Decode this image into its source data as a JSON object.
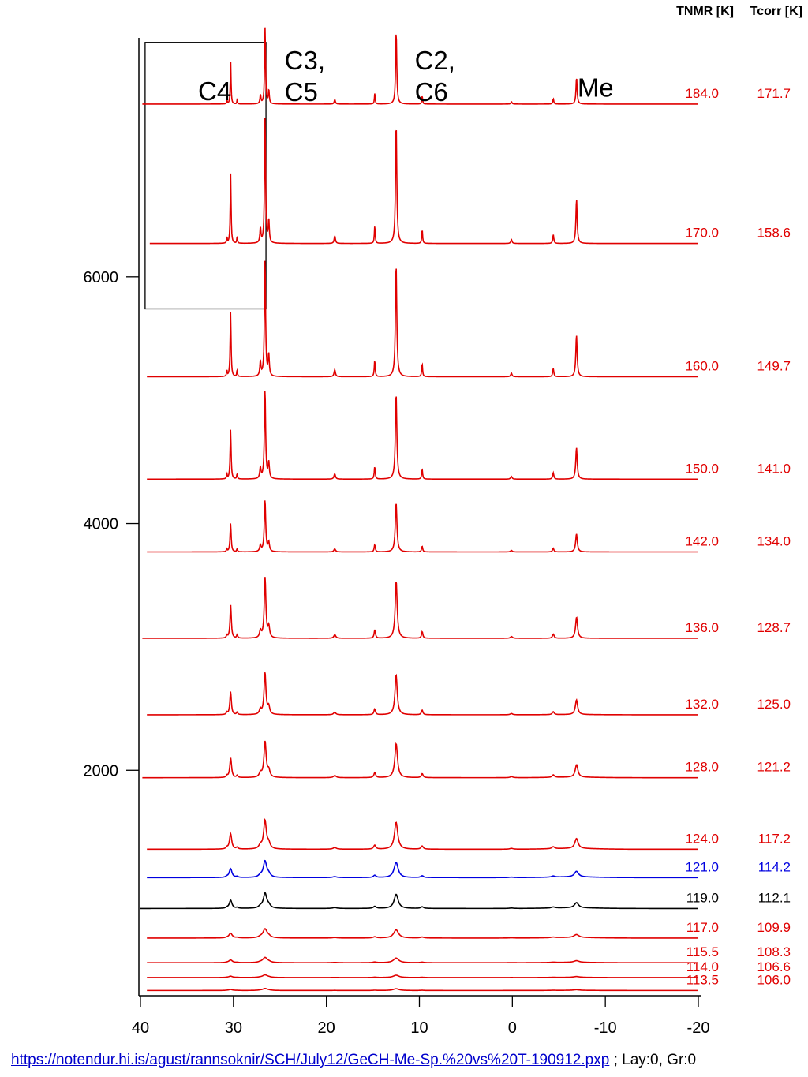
{
  "chart_data": {
    "type": "line",
    "title": "",
    "xlabel": "",
    "ylabel": "",
    "xlim": [
      40,
      -20
    ],
    "ylim": [
      0,
      7700
    ],
    "x_ticks": [
      40,
      30,
      20,
      10,
      0,
      -10,
      -20
    ],
    "x_tick_labels": [
      "40",
      "30",
      "20",
      "10",
      "0",
      "-10",
      "-20"
    ],
    "y_ticks": [
      2000,
      4000,
      6000
    ],
    "y_tick_labels": [
      "2000",
      "4000",
      "6000"
    ],
    "grid": false,
    "column_headers": [
      "TNMR [K]",
      "Tcorr [K]"
    ],
    "peak_labels": [
      {
        "text": [
          "C4"
        ],
        "x": 33.8,
        "y": 7430
      },
      {
        "text": [
          "C3,",
          "C5"
        ],
        "x": 24.5,
        "y": 7680
      },
      {
        "text": [
          "C2,",
          "C6"
        ],
        "x": 10.5,
        "y": 7680
      },
      {
        "text": [
          "Me"
        ],
        "x": -7.0,
        "y": 7460
      }
    ],
    "inset_box": {
      "x": [
        39.5,
        26.5
      ],
      "y": [
        5740,
        7900
      ]
    },
    "peaks": [
      {
        "pos": 30.3,
        "rel": 0.55,
        "w": 0.4
      },
      {
        "pos": 29.6,
        "rel": 0.06,
        "w": 0.3
      },
      {
        "pos": 30.7,
        "rel": 0.05,
        "w": 0.3
      },
      {
        "pos": 27.1,
        "rel": 0.12,
        "w": 0.5
      },
      {
        "pos": 26.6,
        "rel": 1.0,
        "w": 0.5
      },
      {
        "pos": 26.2,
        "rel": 0.18,
        "w": 0.5
      },
      {
        "pos": 19.1,
        "rel": 0.06,
        "w": 0.6
      },
      {
        "pos": 14.8,
        "rel": 0.14,
        "w": 0.4
      },
      {
        "pos": 12.5,
        "rel": 0.95,
        "w": 0.6
      },
      {
        "pos": 9.7,
        "rel": 0.11,
        "w": 0.4
      },
      {
        "pos": 0.1,
        "rel": 0.03,
        "w": 0.6
      },
      {
        "pos": -4.4,
        "rel": 0.07,
        "w": 0.5
      },
      {
        "pos": -6.9,
        "rel": 0.35,
        "w": 0.6
      }
    ],
    "series": [
      {
        "tnmr": "184.0",
        "tcorr": "171.7",
        "baseline": 7400,
        "height": 620,
        "width_scale": 0.55,
        "x_start": 39.8,
        "color": "#e00000"
      },
      {
        "tnmr": "170.0",
        "tcorr": "158.6",
        "baseline": 6270,
        "height": 1030,
        "width_scale": 0.6,
        "x_start": 39.0,
        "color": "#e00000"
      },
      {
        "tnmr": "160.0",
        "tcorr": "149.7",
        "baseline": 5190,
        "height": 960,
        "width_scale": 0.65,
        "x_start": 39.3,
        "color": "#e00000"
      },
      {
        "tnmr": "150.0",
        "tcorr": "141.0",
        "baseline": 4360,
        "height": 730,
        "width_scale": 0.7,
        "x_start": 39.3,
        "color": "#e00000"
      },
      {
        "tnmr": "142.0",
        "tcorr": "134.0",
        "baseline": 3770,
        "height": 420,
        "width_scale": 0.8,
        "x_start": 39.3,
        "color": "#e00000"
      },
      {
        "tnmr": "136.0",
        "tcorr": "128.7",
        "baseline": 3070,
        "height": 490,
        "width_scale": 0.95,
        "x_start": 39.8,
        "color": "#e00000"
      },
      {
        "tnmr": "132.0",
        "tcorr": "125.0",
        "baseline": 2450,
        "height": 340,
        "width_scale": 1.1,
        "x_start": 39.3,
        "color": "#e00000"
      },
      {
        "tnmr": "128.0",
        "tcorr": "121.2",
        "baseline": 1940,
        "height": 290,
        "width_scale": 1.3,
        "x_start": 39.8,
        "color": "#e00000"
      },
      {
        "tnmr": "124.0",
        "tcorr": "117.2",
        "baseline": 1360,
        "height": 230,
        "width_scale": 1.6,
        "x_start": 39.3,
        "color": "#e00000"
      },
      {
        "tnmr": "121.0",
        "tcorr": "114.2",
        "baseline": 1130,
        "height": 130,
        "width_scale": 2.0,
        "x_start": 39.3,
        "color": "#0000e0"
      },
      {
        "tnmr": "119.0",
        "tcorr": "112.1",
        "baseline": 880,
        "height": 120,
        "width_scale": 2.0,
        "x_start": 40.0,
        "color": "#000000"
      },
      {
        "tnmr": "117.0",
        "tcorr": "109.9",
        "baseline": 640,
        "height": 70,
        "width_scale": 2.4,
        "x_start": 39.3,
        "color": "#e00000"
      },
      {
        "tnmr": "115.5",
        "tcorr": "108.3",
        "baseline": 440,
        "height": 40,
        "width_scale": 2.6,
        "x_start": 39.3,
        "color": "#e00000"
      },
      {
        "tnmr": "114.0",
        "tcorr": "106.6",
        "baseline": 320,
        "height": 20,
        "width_scale": 2.8,
        "x_start": 39.3,
        "color": "#e00000"
      },
      {
        "tnmr": "113.5",
        "tcorr": "106.0",
        "baseline": 215,
        "height": 15,
        "width_scale": 2.8,
        "x_start": 39.3,
        "color": "#e00000"
      }
    ]
  },
  "footer": {
    "link_text": "https://notendur.hi.is/agust/rannsoknir/SCH/July12/GeCH-Me-Sp.%20vs%20T-190912.pxp",
    "suffix": " ; Lay:0, Gr:0"
  }
}
